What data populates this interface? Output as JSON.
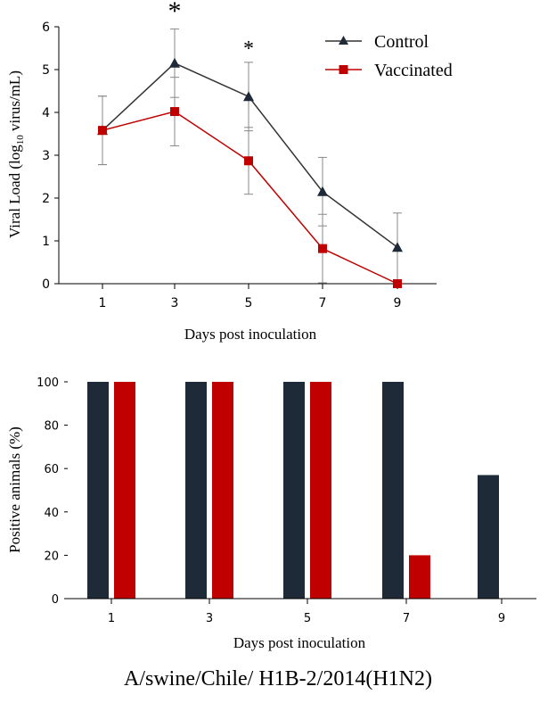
{
  "caption": "A/swine/Chile/ H1B-2/2014(H1N2)",
  "colors": {
    "control": "#1f2a38",
    "vaccinated": "#c00000",
    "control_line": "#333333",
    "axis": "#000000",
    "error": "#888888"
  },
  "chart_data": [
    {
      "type": "line",
      "title": "",
      "xlabel": "Days post inoculation",
      "ylabel_main": "Viral Load (log",
      "ylabel_sub": "10",
      "ylabel_rest": " virus/mL)",
      "x": [
        1,
        3,
        5,
        7,
        9
      ],
      "xticks": [
        "1",
        "3",
        "5",
        "7",
        "9"
      ],
      "yticks": [
        "0",
        "1",
        "2",
        "3",
        "4",
        "5",
        "6"
      ],
      "ylim": [
        0,
        6
      ],
      "series": [
        {
          "name": "Control",
          "marker": "triangle",
          "values": [
            3.58,
            5.15,
            4.37,
            2.15,
            0.85
          ],
          "errors": [
            0.8,
            0.8,
            0.8,
            0.8,
            0.8
          ]
        },
        {
          "name": "Vaccinated",
          "marker": "square",
          "values": [
            3.58,
            4.02,
            2.87,
            0.82,
            0.0
          ],
          "errors": [
            0.8,
            0.8,
            0.78,
            0.8,
            0.0
          ]
        }
      ],
      "annotations": [
        {
          "x": 3,
          "text": "*"
        },
        {
          "x": 5,
          "text": "*"
        }
      ],
      "legend": [
        "Control",
        "Vaccinated"
      ],
      "legend_position": "top-right"
    },
    {
      "type": "bar",
      "title": "",
      "xlabel": "Days post inoculation",
      "ylabel": "Positive animals (%)",
      "categories": [
        "1",
        "3",
        "5",
        "7",
        "9"
      ],
      "yticks": [
        "0",
        "20",
        "40",
        "60",
        "80",
        "100"
      ],
      "ylim": [
        0,
        100
      ],
      "series": [
        {
          "name": "Control",
          "values": [
            100,
            100,
            100,
            100,
            57
          ]
        },
        {
          "name": "Vaccinated",
          "values": [
            100,
            100,
            100,
            20,
            0
          ]
        }
      ]
    }
  ]
}
